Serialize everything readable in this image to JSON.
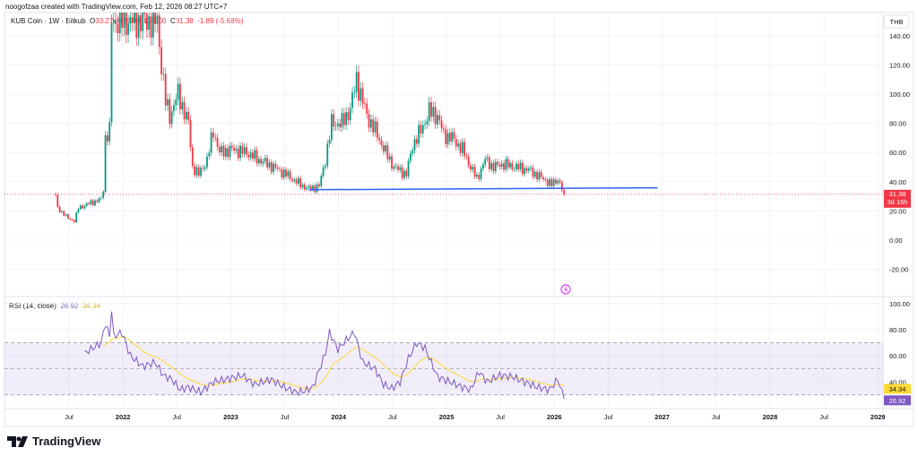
{
  "credit": "noogofzaa created with TradingView.com, Feb 12, 2026 08:27 UTC+7",
  "legend": {
    "symbol": "KUB Coin · 1W · Bitkub",
    "o_label": "O",
    "o": "33.27",
    "h_label": "H",
    "h": "35.00",
    "l_label": "L",
    "l": "31.00",
    "c_label": "C",
    "c": "31.38",
    "change": "-1.89 (-5.68%)"
  },
  "currency": "THB",
  "last_price": {
    "price": "31.38",
    "countdown": "3d 16h"
  },
  "rsi": {
    "label": "RSI (14, close)",
    "value": "26.92",
    "ma": "34.34"
  },
  "logo": "TradingView",
  "colors": {
    "up": "#089981",
    "down": "#f23645",
    "rsi": "#7e57c2",
    "rsi_ma": "#fdd835",
    "trendline": "#2962ff"
  },
  "chart_data": {
    "type": "candlestick",
    "price_axis": {
      "ticks": [
        "140.00",
        "120.00",
        "100.00",
        "80.00",
        "60.00",
        "40.00",
        "20.00",
        "0.00",
        "-20.00"
      ],
      "range": [
        -30,
        150
      ]
    },
    "rsi_axis": {
      "ticks": [
        "100.00",
        "80.00",
        "60.00",
        "40.00"
      ],
      "bands": [
        30,
        70
      ]
    },
    "time_ticks": [
      "Jul",
      "2022",
      "Jul",
      "2023",
      "Jul",
      "2024",
      "Jul",
      "2025",
      "Jul",
      "2026",
      "Jul",
      "2027",
      "Jul",
      "2028",
      "Jul",
      "2029"
    ],
    "start": "2021-05",
    "interval": "1W",
    "close_keypoints": [
      [
        0,
        30
      ],
      [
        1,
        22
      ],
      [
        6,
        15
      ],
      [
        9,
        13
      ],
      [
        11,
        22
      ],
      [
        16,
        25
      ],
      [
        22,
        28
      ],
      [
        23,
        35
      ],
      [
        24,
        70
      ],
      [
        26,
        75
      ],
      [
        27,
        150
      ],
      [
        49,
        150
      ],
      [
        51,
        120
      ],
      [
        53,
        95
      ],
      [
        55,
        85
      ],
      [
        59,
        100
      ],
      [
        64,
        80
      ],
      [
        66,
        50
      ],
      [
        69,
        45
      ],
      [
        73,
        55
      ],
      [
        76,
        75
      ],
      [
        79,
        60
      ],
      [
        85,
        62
      ],
      [
        92,
        60
      ],
      [
        98,
        55
      ],
      [
        105,
        50
      ],
      [
        111,
        45
      ],
      [
        118,
        38
      ],
      [
        122,
        35
      ],
      [
        127,
        37
      ],
      [
        130,
        55
      ],
      [
        133,
        80
      ],
      [
        138,
        80
      ],
      [
        142,
        90
      ],
      [
        145,
        110
      ],
      [
        148,
        95
      ],
      [
        150,
        85
      ],
      [
        154,
        75
      ],
      [
        159,
        60
      ],
      [
        163,
        50
      ],
      [
        169,
        45
      ],
      [
        172,
        65
      ],
      [
        176,
        75
      ],
      [
        180,
        88
      ],
      [
        184,
        85
      ],
      [
        187,
        72
      ],
      [
        191,
        70
      ],
      [
        196,
        62
      ],
      [
        200,
        50
      ],
      [
        203,
        42
      ],
      [
        207,
        55
      ],
      [
        211,
        50
      ],
      [
        215,
        52
      ],
      [
        222,
        50
      ],
      [
        228,
        48
      ],
      [
        235,
        42
      ],
      [
        239,
        38
      ],
      [
        242,
        42
      ],
      [
        245,
        31.38
      ]
    ],
    "rsi_keypoints": [
      [
        14,
        62
      ],
      [
        18,
        66
      ],
      [
        22,
        70
      ],
      [
        24,
        85
      ],
      [
        26,
        75
      ],
      [
        27,
        96
      ],
      [
        28,
        75
      ],
      [
        32,
        78
      ],
      [
        36,
        60
      ],
      [
        42,
        52
      ],
      [
        48,
        55
      ],
      [
        52,
        45
      ],
      [
        56,
        42
      ],
      [
        60,
        34
      ],
      [
        64,
        36
      ],
      [
        70,
        32
      ],
      [
        76,
        40
      ],
      [
        82,
        42
      ],
      [
        90,
        45
      ],
      [
        96,
        38
      ],
      [
        104,
        42
      ],
      [
        110,
        36
      ],
      [
        116,
        32
      ],
      [
        120,
        33
      ],
      [
        124,
        36
      ],
      [
        130,
        62
      ],
      [
        132,
        78
      ],
      [
        136,
        65
      ],
      [
        140,
        72
      ],
      [
        144,
        78
      ],
      [
        148,
        55
      ],
      [
        154,
        50
      ],
      [
        158,
        38
      ],
      [
        162,
        35
      ],
      [
        166,
        40
      ],
      [
        170,
        58
      ],
      [
        174,
        70
      ],
      [
        178,
        66
      ],
      [
        184,
        44
      ],
      [
        190,
        40
      ],
      [
        196,
        36
      ],
      [
        200,
        34
      ],
      [
        204,
        48
      ],
      [
        208,
        40
      ],
      [
        214,
        45
      ],
      [
        220,
        44
      ],
      [
        226,
        40
      ],
      [
        232,
        36
      ],
      [
        238,
        34
      ],
      [
        242,
        42
      ],
      [
        245,
        26.92
      ]
    ],
    "trendline": {
      "from": [
        122,
        34.5
      ],
      "to": [
        290,
        35.8
      ]
    }
  }
}
